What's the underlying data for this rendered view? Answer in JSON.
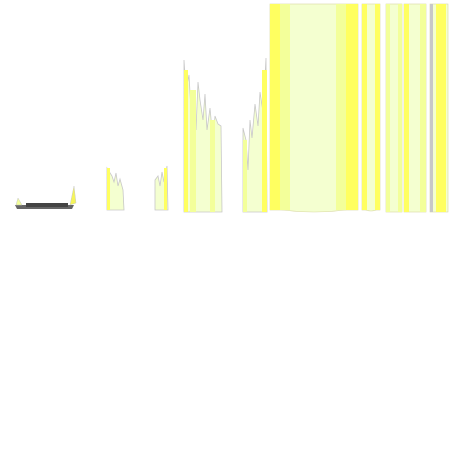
{
  "scene": {
    "description_visible_text": "",
    "objects": [
      {
        "kind": "dish",
        "label": ""
      },
      {
        "kind": "broken-cup",
        "label": ""
      },
      {
        "kind": "broken-cup",
        "label": ""
      },
      {
        "kind": "broken-cylinder",
        "label": ""
      },
      {
        "kind": "broken-cylinder",
        "label": ""
      },
      {
        "kind": "cylinder",
        "label": ""
      },
      {
        "kind": "cylinder",
        "label": ""
      },
      {
        "kind": "cylinder",
        "label": ""
      },
      {
        "kind": "cylinder",
        "label": ""
      }
    ]
  },
  "colors": {
    "background": "#ffffff",
    "pale": "#f4ffd0",
    "light": "#f3ff9a",
    "bright": "#ffff60",
    "accent": "#f5f55a",
    "edge": "#c8c8c8",
    "shadow": "#666666",
    "dark": "#444444"
  }
}
